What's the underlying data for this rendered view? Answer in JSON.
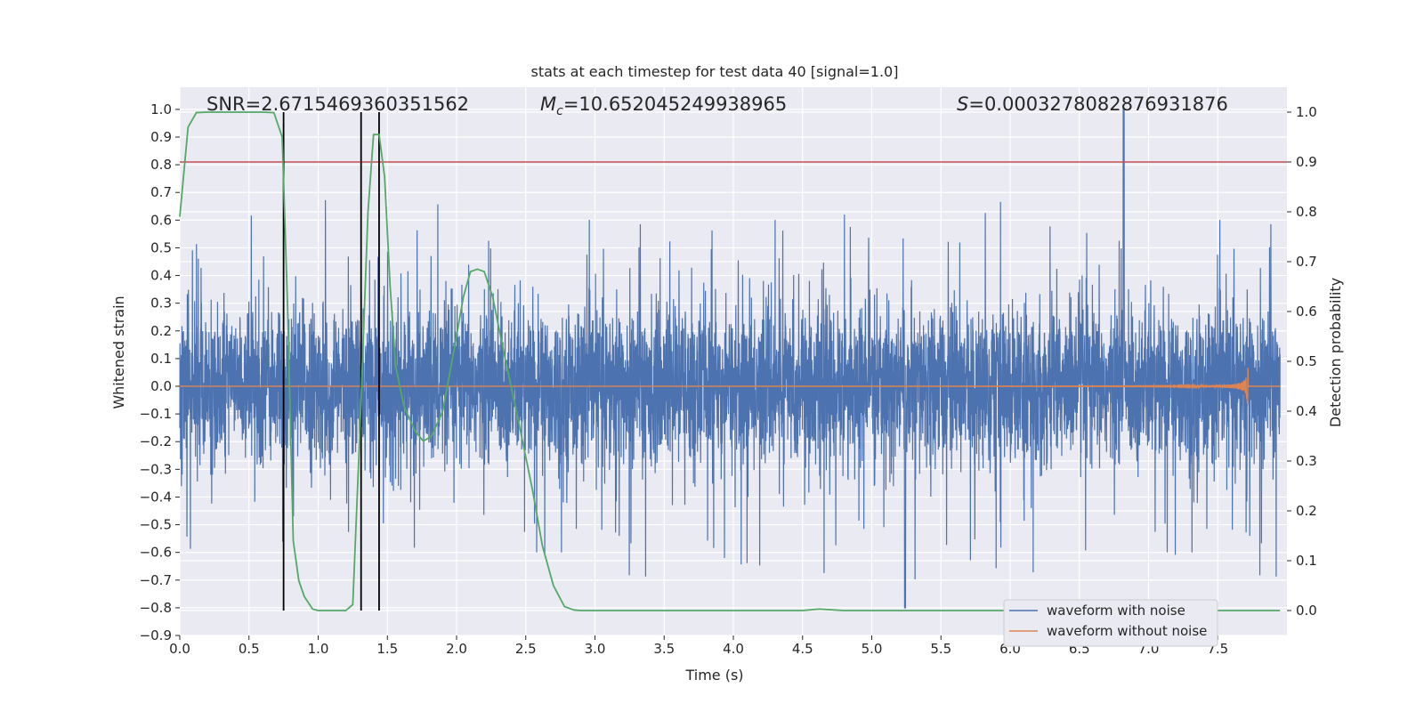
{
  "chart_data": {
    "type": "line",
    "title": "stats at each timestep for test data 40 [signal=1.0]",
    "xlabel": "Time (s)",
    "ylabel": "Whitened strain",
    "y2label": "Detection probability",
    "xlim": [
      0.0,
      8.0
    ],
    "ylim": [
      -0.9,
      1.08
    ],
    "y2lim": [
      -0.05,
      1.05
    ],
    "x_ticks": [
      0.0,
      0.5,
      1.0,
      1.5,
      2.0,
      2.5,
      3.0,
      3.5,
      4.0,
      4.5,
      5.0,
      5.5,
      6.0,
      6.5,
      7.0,
      7.5
    ],
    "x_tick_labels": [
      "0.0",
      "0.5",
      "1.0",
      "1.5",
      "2.0",
      "2.5",
      "3.0",
      "3.5",
      "4.0",
      "4.5",
      "5.0",
      "5.5",
      "6.0",
      "6.5",
      "7.0",
      "7.5"
    ],
    "y_ticks": [
      -0.9,
      -0.8,
      -0.7,
      -0.6,
      -0.5,
      -0.4,
      -0.3,
      -0.2,
      -0.1,
      0.0,
      0.1,
      0.2,
      0.3,
      0.4,
      0.5,
      0.6,
      0.7,
      0.8,
      0.9,
      1.0
    ],
    "y_tick_labels": [
      "−0.9",
      "−0.8",
      "−0.7",
      "−0.6",
      "−0.5",
      "−0.4",
      "−0.3",
      "−0.2",
      "−0.1",
      "0.0",
      "0.1",
      "0.2",
      "0.3",
      "0.4",
      "0.5",
      "0.6",
      "0.7",
      "0.8",
      "0.9",
      "1.0"
    ],
    "y2_ticks": [
      0.0,
      0.1,
      0.2,
      0.3,
      0.4,
      0.5,
      0.6,
      0.7,
      0.8,
      0.9,
      1.0
    ],
    "y2_tick_labels": [
      "0.0",
      "0.1",
      "0.2",
      "0.3",
      "0.4",
      "0.5",
      "0.6",
      "0.7",
      "0.8",
      "0.9",
      "1.0"
    ],
    "grid": true,
    "annotations": {
      "snr": "SNR=2.6715469360351562",
      "mc_symbol": "M",
      "mc_sub": "c",
      "mc_value": "=10.652045249938965",
      "s_symbol": "S",
      "s_value": "=0.0003278082876931876"
    },
    "colors": {
      "noisy": "#4c72b0",
      "clean": "#dd8452",
      "prob": "#55a868",
      "threshold": "#c44e52",
      "markers": "#000000",
      "background": "#eaeaf2",
      "grid": "#ffffff"
    },
    "series": [
      {
        "name": "waveform with noise",
        "axis": "left",
        "description_stats": {
          "typical_low": -0.3,
          "typical_high": 0.3,
          "peak_high": 1.0,
          "peak_high_at": 6.82,
          "peak_low": -0.8,
          "peak_low_at": 5.24
        }
      },
      {
        "name": "waveform without noise",
        "axis": "left",
        "chirp_end": 7.72,
        "chirp_peak": 0.1
      },
      {
        "name": "detection probability",
        "axis": "right",
        "x": [
          0.0,
          0.06,
          0.12,
          0.2,
          0.35,
          0.5,
          0.6,
          0.68,
          0.74,
          0.78,
          0.82,
          0.86,
          0.9,
          0.96,
          1.0,
          1.1,
          1.2,
          1.25,
          1.3,
          1.36,
          1.4,
          1.44,
          1.48,
          1.52,
          1.56,
          1.62,
          1.7,
          1.76,
          1.82,
          1.9,
          1.98,
          2.05,
          2.1,
          2.15,
          2.2,
          2.26,
          2.34,
          2.44,
          2.55,
          2.62,
          2.7,
          2.78,
          2.85,
          2.9,
          3.0,
          3.5,
          4.0,
          4.5,
          4.62,
          4.8,
          5.0,
          5.5,
          6.0,
          6.5,
          7.0,
          7.5,
          7.95
        ],
        "y": [
          0.79,
          0.97,
          0.999,
          1.0,
          1.0,
          1.0,
          1.0,
          0.999,
          0.95,
          0.6,
          0.14,
          0.06,
          0.028,
          0.003,
          0.0,
          0.0,
          0.0,
          0.012,
          0.35,
          0.8,
          0.955,
          0.955,
          0.87,
          0.65,
          0.49,
          0.41,
          0.36,
          0.34,
          0.35,
          0.4,
          0.52,
          0.63,
          0.68,
          0.685,
          0.68,
          0.63,
          0.52,
          0.39,
          0.24,
          0.13,
          0.05,
          0.008,
          0.001,
          0.0,
          0.0,
          0.0,
          0.0,
          0.0,
          0.003,
          0.0,
          0.0,
          0.0,
          0.0,
          0.0,
          0.0,
          0.0,
          0.0
        ]
      }
    ],
    "threshold_y2": 0.9,
    "marker_times": [
      0.75,
      1.31,
      1.44
    ],
    "legend_position": "lower-right"
  }
}
